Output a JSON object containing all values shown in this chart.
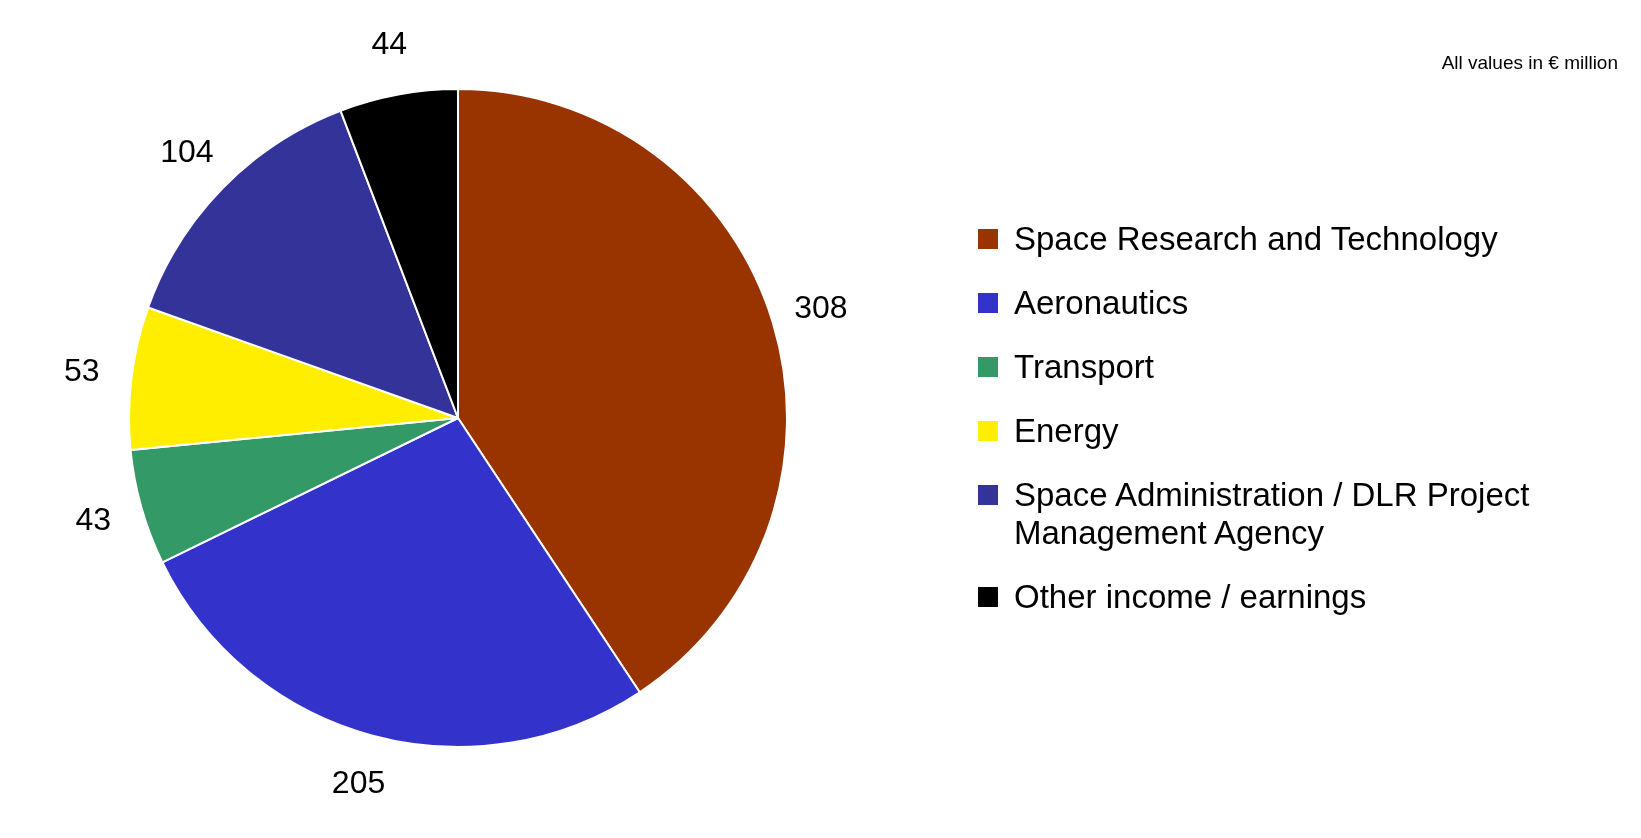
{
  "chart_data": {
    "type": "pie",
    "categories": [
      "Space Research and Technology",
      "Aeronautics",
      "Transport",
      "Energy",
      "Space Administration / DLR Project Management Agency",
      "Other income / earnings"
    ],
    "values": [
      308,
      205,
      43,
      53,
      104,
      44
    ],
    "colors": [
      "#993300",
      "#3333cc",
      "#339966",
      "#ffee00",
      "#333399",
      "#000000"
    ],
    "data_labels": true,
    "legend": "right",
    "annotations": [
      "All values in € million"
    ]
  }
}
